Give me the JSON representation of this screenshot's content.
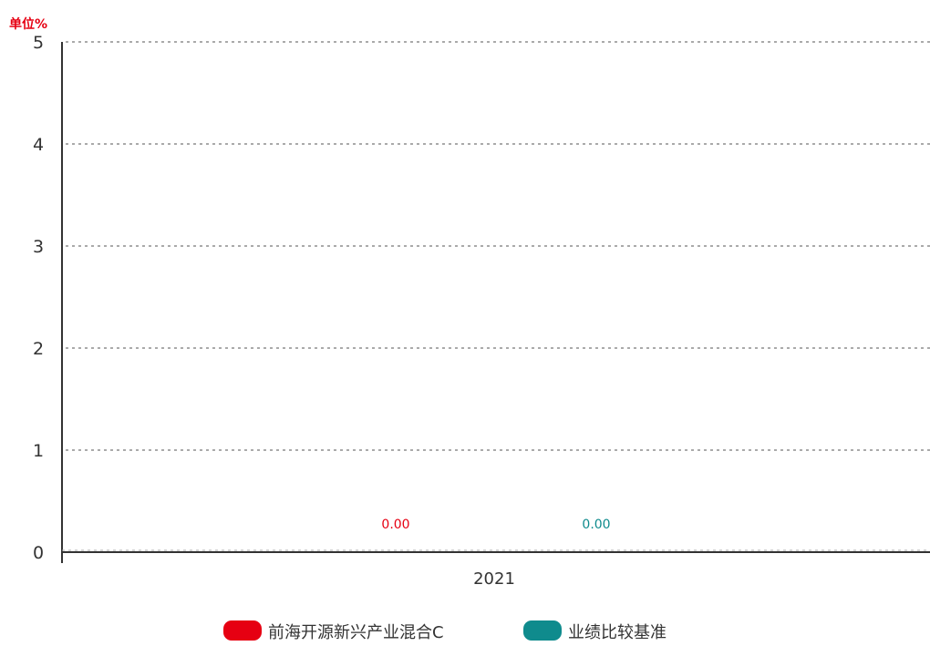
{
  "chart_data": {
    "type": "bar",
    "unit_label": "单位%",
    "categories": [
      "2021"
    ],
    "series": [
      {
        "name": "前海开源新兴产业混合C",
        "values": [
          0.0
        ],
        "labels": [
          "0.00"
        ],
        "color": "#e60012"
      },
      {
        "name": "业绩比较基准",
        "values": [
          0.0
        ],
        "labels": [
          "0.00"
        ],
        "color": "#0f8b8d"
      }
    ],
    "yticks": [
      "0",
      "1",
      "2",
      "3",
      "4",
      "5"
    ],
    "ylim": [
      0,
      5
    ],
    "grid": true,
    "legend_position": "bottom",
    "colors": {
      "unit_label": "#e60012",
      "axis": "#333333",
      "grid": "#aaaaaa"
    }
  }
}
